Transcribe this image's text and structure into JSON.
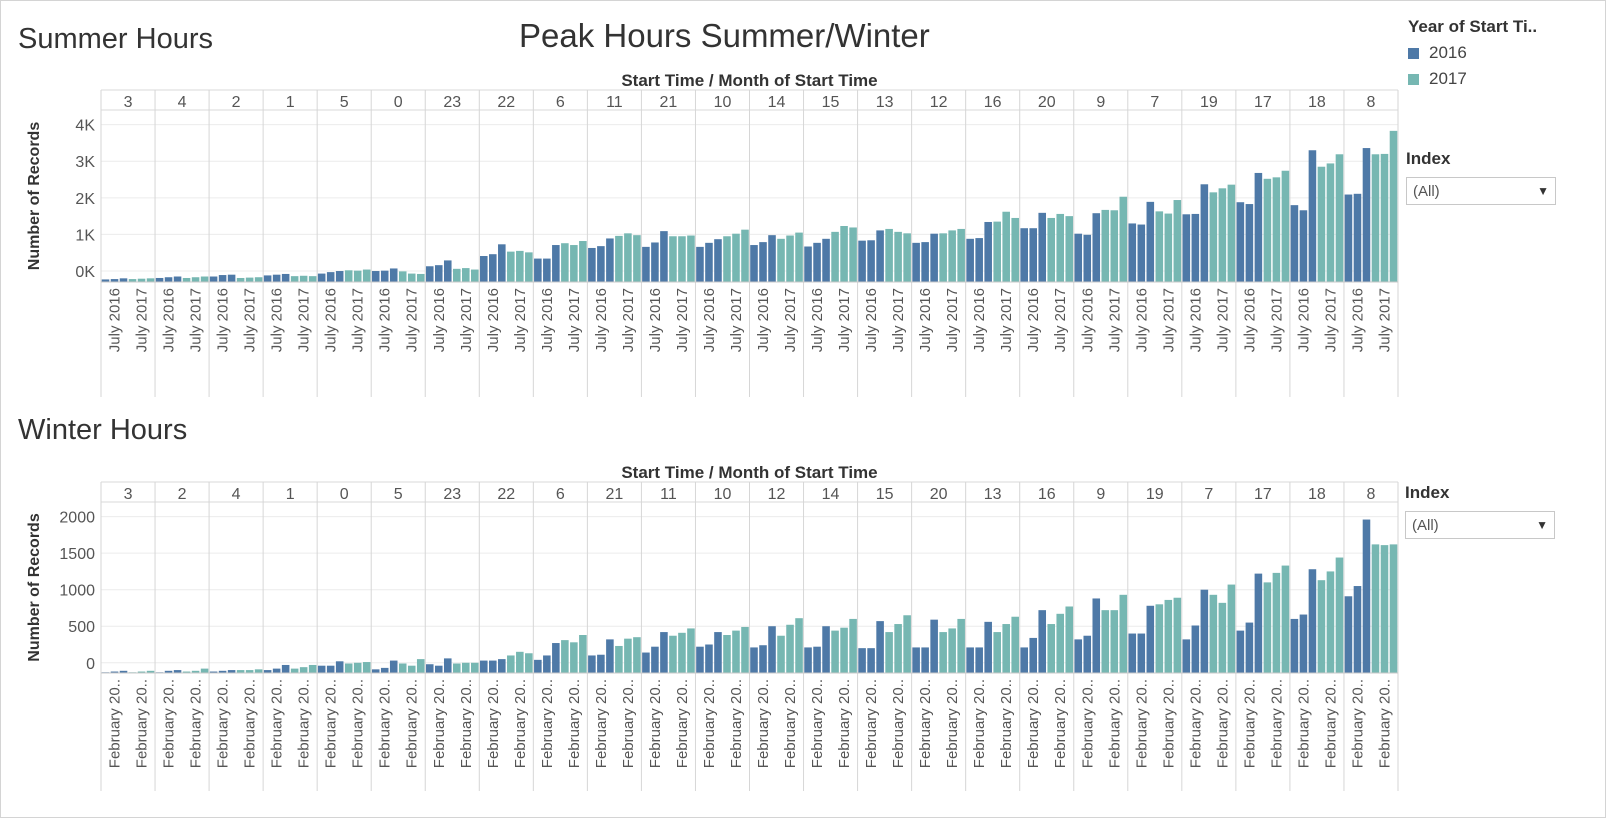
{
  "page_title": "Peak Hours Summer/Winter",
  "legend": {
    "title": "Year of Start Ti..",
    "items": [
      {
        "label": "2016",
        "color": "#4e79a7"
      },
      {
        "label": "2017",
        "color": "#76b7b2"
      }
    ]
  },
  "filters": {
    "summer": {
      "label": "Index",
      "value": "(All)"
    },
    "winter": {
      "label": "Index",
      "value": "(All)"
    }
  },
  "chart_data": [
    {
      "type": "bar",
      "title": "Summer Hours",
      "column_header": "Start Time  /  Month of Start Time",
      "ylabel": "Number of Records",
      "yticks": [
        0,
        1000,
        2000,
        3000,
        4000
      ],
      "ytick_labels": [
        "0K",
        "1K",
        "2K",
        "3K",
        "4K"
      ],
      "ylim": [
        -300,
        4400
      ],
      "month_tick_labels": [
        "July 2016",
        "July 2017"
      ],
      "hours": [
        "3",
        "4",
        "2",
        "1",
        "5",
        "0",
        "23",
        "22",
        "6",
        "11",
        "21",
        "10",
        "14",
        "15",
        "13",
        "12",
        "16",
        "20",
        "9",
        "7",
        "19",
        "17",
        "18",
        "8"
      ],
      "series": [
        {
          "name": "2016",
          "color": "#4e79a7",
          "values": [
            [
              -230,
              -220,
              -200
            ],
            [
              -190,
              -170,
              -150
            ],
            [
              -150,
              -110,
              -100
            ],
            [
              -120,
              -100,
              -80
            ],
            [
              -70,
              -30,
              0
            ],
            [
              0,
              10,
              70
            ],
            [
              130,
              160,
              290
            ],
            [
              410,
              460,
              730
            ],
            [
              340,
              340,
              710
            ],
            [
              630,
              680,
              890
            ],
            [
              660,
              780,
              1090
            ],
            [
              660,
              770,
              870
            ],
            [
              710,
              790,
              980
            ],
            [
              670,
              770,
              880
            ],
            [
              830,
              840,
              1110
            ],
            [
              770,
              790,
              1020
            ],
            [
              880,
              900,
              1340
            ],
            [
              1170,
              1170,
              1590
            ],
            [
              1020,
              990,
              1580
            ],
            [
              1300,
              1270,
              1890
            ],
            [
              1550,
              1560,
              2370
            ],
            [
              1880,
              1830,
              2680
            ],
            [
              1800,
              1660,
              3300
            ],
            [
              2090,
              2110,
              3360
            ]
          ]
        },
        {
          "name": "2017",
          "color": "#76b7b2",
          "values": [
            [
              -220,
              -210,
              -200
            ],
            [
              -190,
              -170,
              -150
            ],
            [
              -190,
              -180,
              -170
            ],
            [
              -140,
              -130,
              -140
            ],
            [
              20,
              10,
              40
            ],
            [
              -10,
              -70,
              -80
            ],
            [
              60,
              80,
              40
            ],
            [
              530,
              550,
              510
            ],
            [
              760,
              710,
              820
            ],
            [
              960,
              1030,
              980
            ],
            [
              950,
              950,
              970
            ],
            [
              950,
              1020,
              1130
            ],
            [
              880,
              970,
              1050
            ],
            [
              1070,
              1230,
              1190
            ],
            [
              1150,
              1070,
              1030
            ],
            [
              1030,
              1110,
              1150
            ],
            [
              1350,
              1620,
              1450
            ],
            [
              1450,
              1560,
              1500
            ],
            [
              1670,
              1660,
              2030
            ],
            [
              1630,
              1570,
              1940
            ],
            [
              2150,
              2260,
              2360
            ],
            [
              2520,
              2560,
              2740
            ],
            [
              2850,
              2940,
              3190
            ],
            [
              3190,
              3200,
              3830
            ]
          ]
        }
      ]
    },
    {
      "type": "bar",
      "title": "Winter Hours",
      "column_header": "Start Time  /  Month of Start Time",
      "ylabel": "Number of Records",
      "yticks": [
        0,
        500,
        1000,
        1500,
        2000
      ],
      "ytick_labels": [
        "0",
        "500",
        "1000",
        "1500",
        "2000"
      ],
      "ylim": [
        -140,
        2200
      ],
      "month_tick_labels": [
        "February 20..",
        "February 20.."
      ],
      "hours": [
        "3",
        "2",
        "4",
        "1",
        "0",
        "5",
        "23",
        "22",
        "6",
        "21",
        "11",
        "10",
        "12",
        "14",
        "15",
        "20",
        "13",
        "16",
        "9",
        "19",
        "7",
        "17",
        "18",
        "8"
      ],
      "series": [
        {
          "name": "2016",
          "color": "#4e79a7",
          "values": [
            [
              -130,
              -120,
              -110
            ],
            [
              -130,
              -110,
              -100
            ],
            [
              -120,
              -110,
              -100
            ],
            [
              -100,
              -80,
              -30
            ],
            [
              -40,
              -40,
              20
            ],
            [
              -90,
              -70,
              30
            ],
            [
              -20,
              -40,
              60
            ],
            [
              30,
              30,
              50
            ],
            [
              40,
              100,
              270
            ],
            [
              100,
              110,
              320
            ],
            [
              140,
              220,
              420
            ],
            [
              220,
              250,
              420
            ],
            [
              210,
              240,
              500
            ],
            [
              210,
              220,
              500
            ],
            [
              200,
              200,
              570
            ],
            [
              210,
              210,
              590
            ],
            [
              210,
              210,
              560
            ],
            [
              210,
              340,
              720
            ],
            [
              320,
              370,
              880
            ],
            [
              400,
              400,
              780
            ],
            [
              320,
              510,
              1000
            ],
            [
              440,
              550,
              1220
            ],
            [
              600,
              660,
              1280
            ],
            [
              910,
              1050,
              1960
            ]
          ]
        },
        {
          "name": "2017",
          "color": "#76b7b2",
          "values": [
            [
              -130,
              -120,
              -110
            ],
            [
              -120,
              -110,
              -80
            ],
            [
              -100,
              -100,
              -90
            ],
            [
              -80,
              -60,
              -30
            ],
            [
              -10,
              0,
              10
            ],
            [
              -10,
              -40,
              50
            ],
            [
              -10,
              0,
              0
            ],
            [
              100,
              150,
              130
            ],
            [
              310,
              280,
              380
            ],
            [
              230,
              330,
              350
            ],
            [
              370,
              410,
              470
            ],
            [
              380,
              440,
              490
            ],
            [
              370,
              520,
              610
            ],
            [
              440,
              480,
              600
            ],
            [
              420,
              530,
              650
            ],
            [
              420,
              470,
              600
            ],
            [
              420,
              530,
              630
            ],
            [
              530,
              670,
              770
            ],
            [
              720,
              720,
              930
            ],
            [
              800,
              860,
              890
            ],
            [
              930,
              820,
              1070
            ],
            [
              1100,
              1230,
              1330
            ],
            [
              1130,
              1250,
              1440
            ],
            [
              1620,
              1610,
              1620
            ]
          ]
        }
      ]
    }
  ]
}
